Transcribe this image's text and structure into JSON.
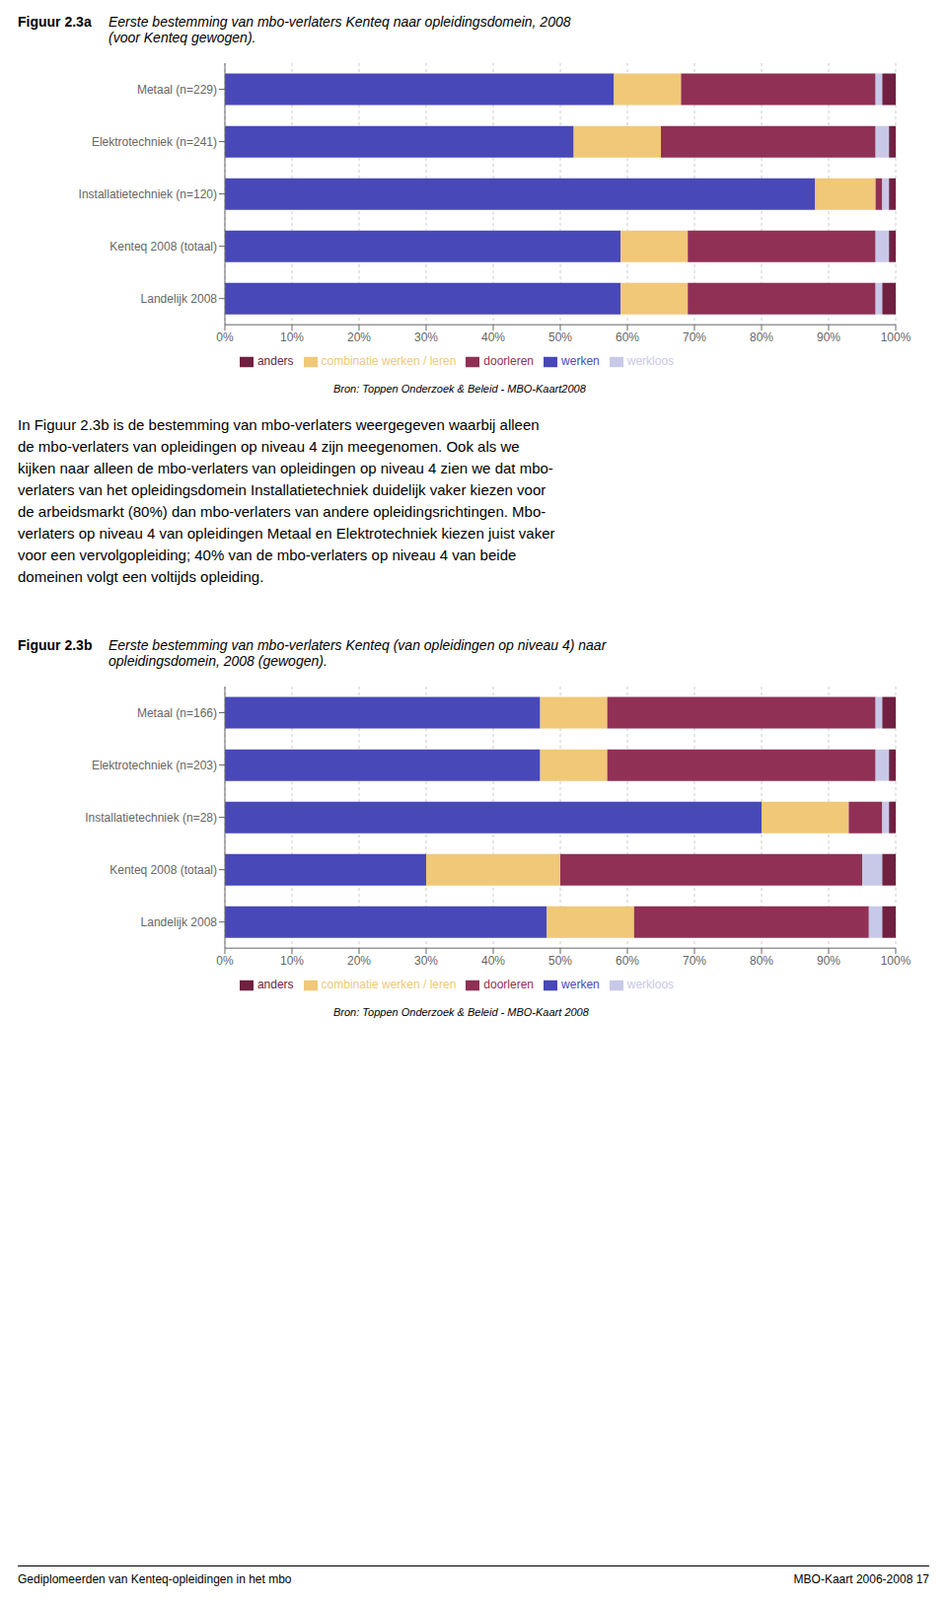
{
  "chart_data": [
    {
      "type": "bar",
      "orientation": "horizontal",
      "stacked": true,
      "grid": true,
      "legend": "bottom",
      "title": "Figuur 2.3a",
      "subtitle": [
        "Eerste bestemming van mbo-verlaters Kenteq naar opleidingsdomein, 2008",
        "(voor Kenteq gewogen)."
      ],
      "categories": [
        "Metaal (n=229)",
        "Elektrotechniek (n=241)",
        "Installatietechniek (n=120)",
        "Kenteq 2008 (totaal)",
        "Landelijk 2008"
      ],
      "series": [
        {
          "name": "werken",
          "color": "#4848B8",
          "values": [
            58,
            52,
            88,
            59,
            59
          ]
        },
        {
          "name": "combinatie werken / leren",
          "color": "#F0C878",
          "values": [
            10,
            13,
            9,
            10,
            10
          ]
        },
        {
          "name": "doorleren",
          "color": "#903055",
          "values": [
            29,
            32,
            1,
            28,
            28
          ]
        },
        {
          "name": "werkloos",
          "color": "#C8C8E8",
          "values": [
            1,
            2,
            1,
            2,
            1
          ]
        },
        {
          "name": "anders",
          "color": "#702040",
          "values": [
            2,
            1,
            1,
            1,
            2
          ]
        }
      ],
      "xlim": [
        0,
        100
      ],
      "xticks": [
        {
          "value": 0,
          "label": "0%"
        },
        {
          "value": 10,
          "label": "10%"
        },
        {
          "value": 20,
          "label": "20%"
        },
        {
          "value": 30,
          "label": "30%"
        },
        {
          "value": 40,
          "label": "40%"
        },
        {
          "value": 50,
          "label": "50%"
        },
        {
          "value": 60,
          "label": "60%"
        },
        {
          "value": 70,
          "label": "70%"
        },
        {
          "value": 80,
          "label": "80%"
        },
        {
          "value": 90,
          "label": "90%"
        },
        {
          "value": 100,
          "label": "100%"
        }
      ],
      "annotations": [
        "Bron: Toppen Onderzoek & Beleid -  MBO-Kaart2008",
        "In Figuur 2.3b is de bestemming van mbo-verlaters weergegeven waarbij alleen",
        "de mbo-verlaters van opleidingen op niveau 4 zijn meegenomen. Ook als we",
        "kijken naar alleen de mbo-verlaters van opleidingen op niveau 4 zien we dat mbo-",
        "verlaters van het opleidingsdomein Installatietechniek duidelijk vaker kiezen voor",
        "de arbeidsmarkt (80%) dan mbo-verlaters van andere opleidingsrichtingen. Mbo-",
        "verlaters op niveau 4 van opleidingen Metaal en Elektrotechniek kiezen juist vaker",
        "voor een vervolgopleiding; 40% van de mbo-verlaters op niveau 4 van beide",
        "domeinen volgt een voltijds opleiding."
      ]
    },
    {
      "type": "bar",
      "orientation": "horizontal",
      "stacked": true,
      "grid": true,
      "legend": "bottom",
      "title": "Figuur 2.3b",
      "subtitle": [
        "Eerste bestemming van mbo-verlaters Kenteq (van opleidingen op niveau 4) naar",
        "opleidingsdomein, 2008 (gewogen)."
      ],
      "categories": [
        "Metaal (n=166)",
        "Elektrotechniek (n=203)",
        "Installatietechniek (n=28)",
        "Kenteq 2008 (totaal)",
        "Landelijk 2008"
      ],
      "series": [
        {
          "name": "werken",
          "color": "#4848B8",
          "values": [
            47,
            47,
            80,
            30,
            48
          ]
        },
        {
          "name": "combinatie werken / leren",
          "color": "#F0C878",
          "values": [
            10,
            10,
            13,
            20,
            13
          ]
        },
        {
          "name": "doorleren",
          "color": "#903055",
          "values": [
            40,
            40,
            5,
            45,
            35
          ]
        },
        {
          "name": "werkloos",
          "color": "#C8C8E8",
          "values": [
            1,
            2,
            1,
            3,
            2
          ]
        },
        {
          "name": "anders",
          "color": "#702040",
          "values": [
            2,
            1,
            1,
            2,
            2
          ]
        }
      ],
      "xlim": [
        0,
        100
      ],
      "xticks": [
        {
          "value": 0,
          "label": "0%"
        },
        {
          "value": 10,
          "label": "10%"
        },
        {
          "value": 20,
          "label": "20%"
        },
        {
          "value": 30,
          "label": "30%"
        },
        {
          "value": 40,
          "label": "40%"
        },
        {
          "value": 50,
          "label": "50%"
        },
        {
          "value": 60,
          "label": "60%"
        },
        {
          "value": 70,
          "label": "70%"
        },
        {
          "value": 80,
          "label": "80%"
        },
        {
          "value": 90,
          "label": "90%"
        },
        {
          "value": 100,
          "label": "100%"
        }
      ],
      "annotations": [
        "Bron: Toppen Onderzoek & Beleid -  MBO-Kaart 2008",
        "Gediplomeerden van Kenteq-opleidingen in het mbo",
        "MBO-Kaart 2006-2008  17"
      ]
    }
  ]
}
